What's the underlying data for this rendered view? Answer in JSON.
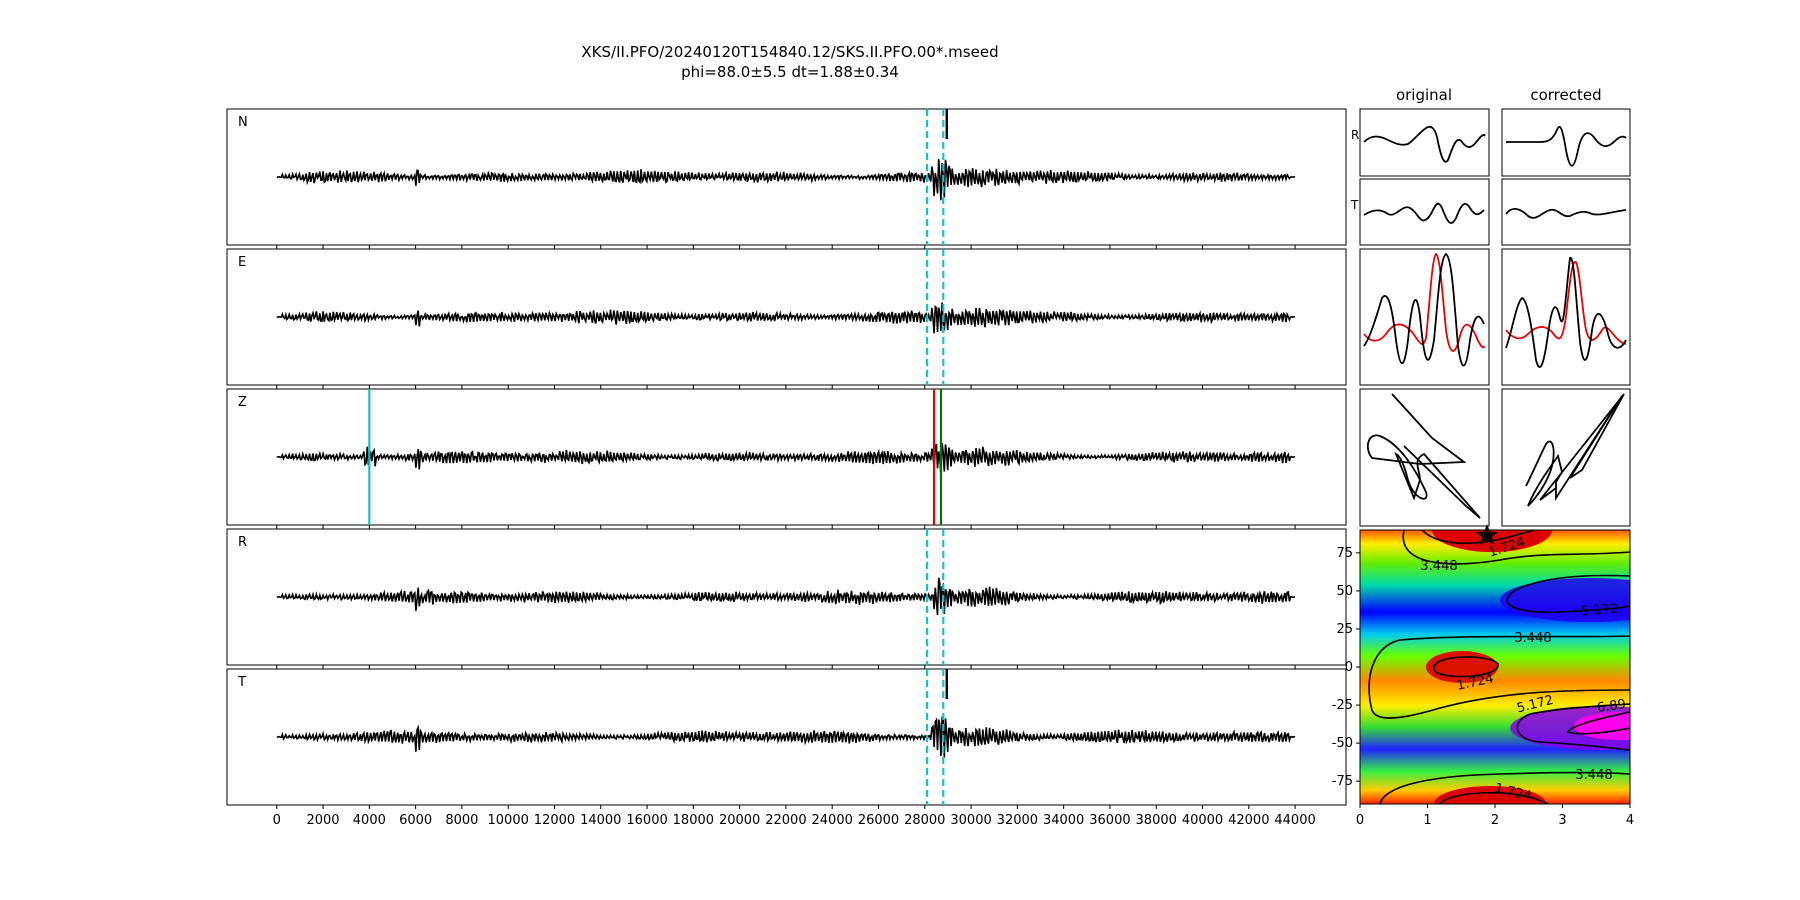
{
  "title": "XKS/II.PFO/20240120T154840.12/SKS.II.PFO.00*.mseed",
  "subtitle": "phi=88.0±5.5 dt=1.88±0.34",
  "chart_data": [
    {
      "type": "line",
      "id": "traces",
      "channels": [
        "N",
        "E",
        "Z",
        "R",
        "T"
      ],
      "x_ticks": [
        0,
        2000,
        4000,
        6000,
        8000,
        10000,
        12000,
        14000,
        16000,
        18000,
        20000,
        22000,
        24000,
        26000,
        28000,
        30000,
        32000,
        34000,
        36000,
        38000,
        40000,
        42000,
        44000
      ],
      "xlim": [
        -2150,
        46200
      ],
      "trace_x_range": [
        0,
        44000
      ],
      "window_markers": [
        28100,
        28800
      ],
      "arrival_markers_Z": [
        {
          "x": 4000,
          "color": "#17becf"
        },
        {
          "x": 28400,
          "color": "#dd0000"
        },
        {
          "x": 28700,
          "color": "#007700"
        }
      ],
      "colors": {
        "trace": "#000000",
        "window": "#17becf"
      }
    },
    {
      "type": "line",
      "id": "particle-motion-panels",
      "column_titles": [
        "original",
        "corrected"
      ],
      "row_labels": [
        "R",
        "T"
      ],
      "colors": {
        "primary": "#000000",
        "secondary": "#ee0000"
      }
    },
    {
      "type": "heatmap",
      "id": "error-surface",
      "x_ticks": [
        0,
        1,
        2,
        3,
        4
      ],
      "y_ticks": [
        75,
        50,
        25,
        0,
        -25,
        -50,
        -75
      ],
      "xlim": [
        0,
        4
      ],
      "ylim": [
        -90,
        90
      ],
      "contour_labels": [
        "1.724",
        "3.448",
        "5.172",
        "3.448",
        "1.724",
        "5.172",
        "6.89",
        "3.448",
        "1.724"
      ],
      "best_fit": {
        "dt": 1.88,
        "phi": 88.0
      }
    }
  ]
}
